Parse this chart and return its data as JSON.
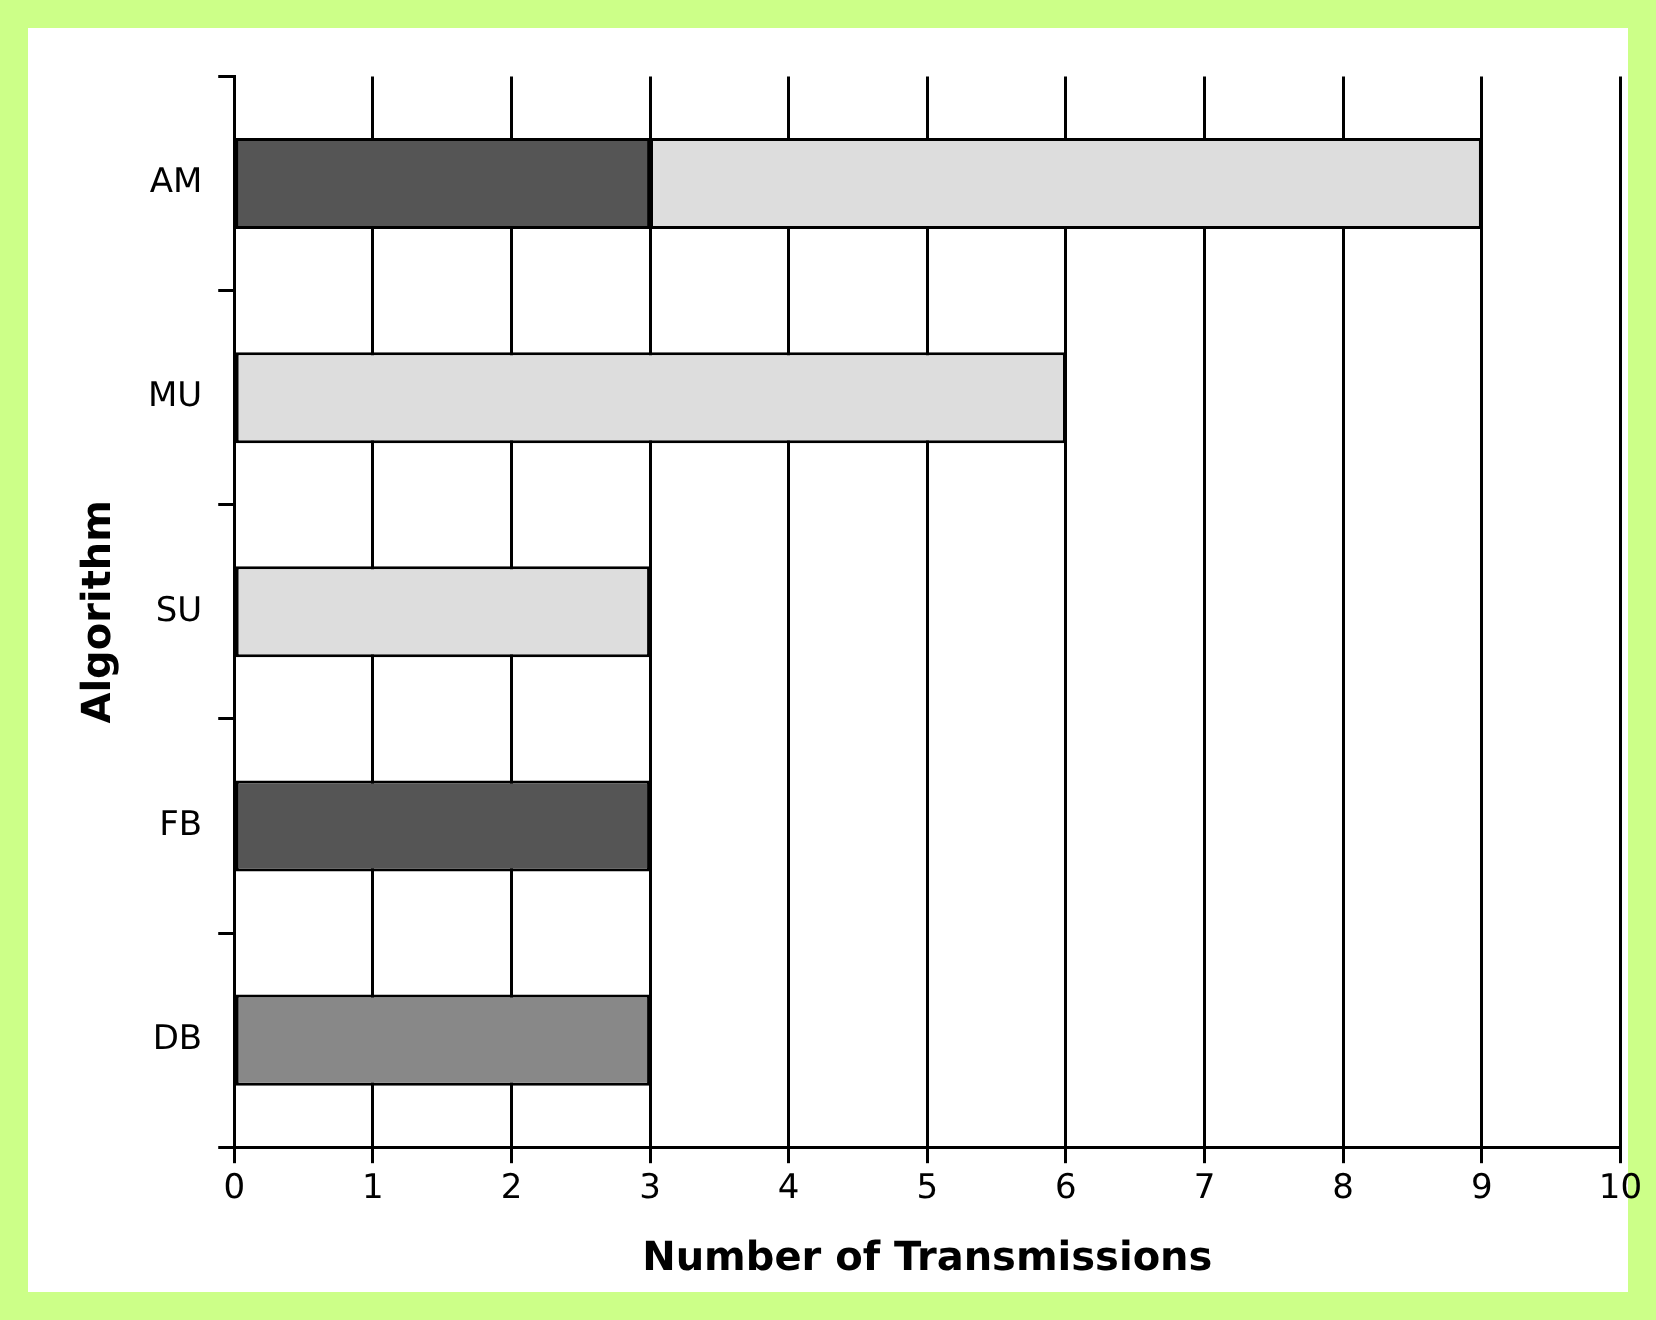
{
  "chart_data": {
    "type": "bar",
    "orientation": "horizontal",
    "stacked": true,
    "xlabel": "Number of Transmissions",
    "ylabel": "Algorithm",
    "categories": [
      "AM",
      "MU",
      "SU",
      "FB",
      "DB"
    ],
    "series": [
      {
        "color": "#555555",
        "values": [
          3,
          null,
          null,
          3,
          null
        ]
      },
      {
        "color": "#dddddd",
        "values": [
          6,
          6,
          3,
          null,
          null
        ]
      },
      {
        "color": "#888888",
        "values": [
          null,
          null,
          null,
          null,
          3
        ]
      }
    ],
    "xlim": [
      0,
      10
    ],
    "xticks": [
      0,
      1,
      2,
      3,
      4,
      5,
      6,
      7,
      8,
      9,
      10
    ],
    "grid": "x",
    "legend": false
  }
}
